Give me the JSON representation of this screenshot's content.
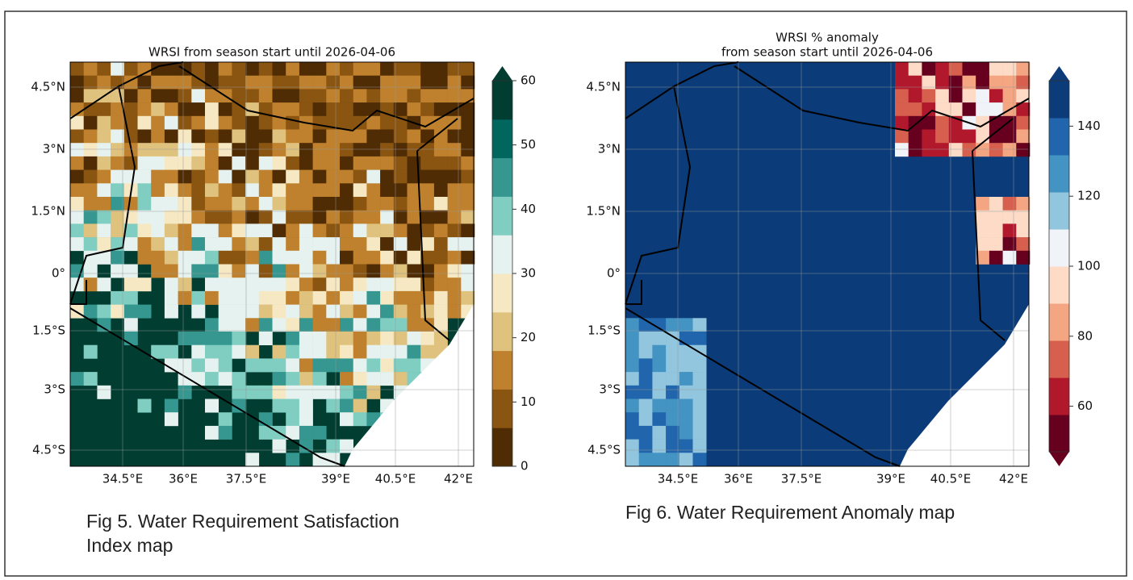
{
  "figures": [
    {
      "title_lines": [
        "WRSI from season start until 2026-04-06"
      ],
      "lon_labels": [
        "34.5°E",
        "36°E",
        "37.5°E",
        "39°E",
        "40.5°E",
        "42°E"
      ],
      "lat_labels": [
        "4.5°N",
        "3°N",
        "1.5°N",
        "0°",
        "1.5°S",
        "3°S",
        "4.5°S"
      ],
      "colorbar": {
        "ticks": [
          0,
          10,
          20,
          30,
          40,
          50,
          60
        ],
        "lim": [
          0,
          60
        ],
        "extend": "max"
      },
      "caption_lines": [
        "Fig 5. Water Requirement Satisfaction",
        "Index map"
      ]
    },
    {
      "title_lines": [
        "WRSI % anomaly",
        "from season start until 2026-04-06"
      ],
      "lon_labels": [
        "34.5°E",
        "36°E",
        "37.5°E",
        "39°E",
        "40.5°E",
        "42°E"
      ],
      "lat_labels": [
        "4.5°N",
        "3°N",
        "1.5°N",
        "0°",
        "1.5°S",
        "3°S",
        "4.5°S"
      ],
      "colorbar": {
        "ticks": [
          60,
          80,
          100,
          120,
          140
        ],
        "lim": [
          47,
          153
        ],
        "extend": "both"
      },
      "caption_lines": [
        "Fig 6. Water Requirement Anomaly map"
      ]
    }
  ]
}
